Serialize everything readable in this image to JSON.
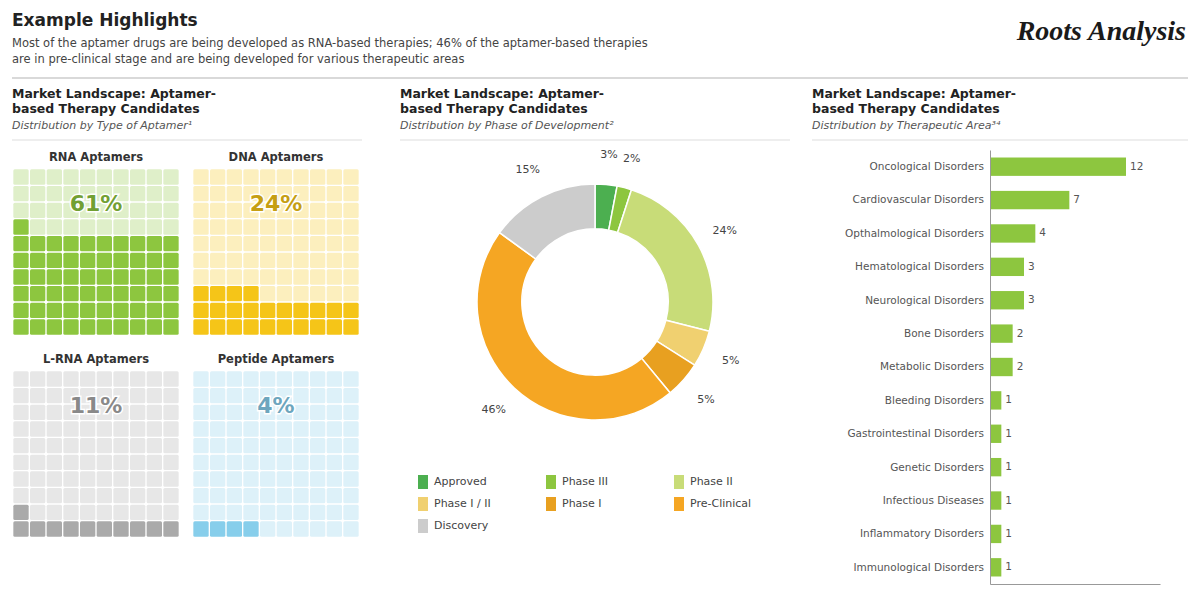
{
  "title": "Example Highlights",
  "subtitle": [
    "Most of the aptamer drugs are being developed as RNA-based therapies; 46% of the aptamer-based therapies",
    "are in pre-clinical stage and are being developed for various therapeutic areas"
  ],
  "annotations": [
    "Roots Analysis"
  ],
  "chart_data": [
    {
      "type": "waffle",
      "title": "Market Landscape: Aptamer-\nbased Therapy Candidates",
      "subtitle": "Distribution by Type of Aptamer¹",
      "categories": [
        "RNA Aptamers",
        "DNA Aptamers",
        "L-RNA Aptamers",
        "Peptide Aptamers"
      ],
      "values": [
        61,
        24,
        11,
        4
      ],
      "value_labels": [
        "61%",
        "24%",
        "11%",
        "4%"
      ],
      "data_labels": true,
      "colors": [
        "#8dc63f",
        "#f5c518",
        "#aaaaaa",
        "#87ceeb"
      ]
    },
    {
      "type": "pie",
      "title": "Market Landscape: Aptamer-\nbased Therapy Candidates",
      "subtitle": "Distribution by Phase of Development²",
      "categories": [
        "Approved",
        "Phase III",
        "Phase II",
        "Phase I / II",
        "Phase I",
        "Pre-Clinical",
        "Discovery"
      ],
      "values": [
        3,
        2,
        24,
        5,
        5,
        46,
        15
      ],
      "value_labels": [
        "3%",
        "2%",
        "24%",
        "5%",
        "5%",
        "46%",
        "15%"
      ],
      "data_labels": true,
      "colors": [
        "#4caf50",
        "#8dc63f",
        "#c8dc78",
        "#f0d070",
        "#e8a020",
        "#f5a623",
        "#cccccc"
      ],
      "legend": "bottom"
    },
    {
      "type": "bar",
      "orientation": "horizontal",
      "title": "Market Landscape: Aptamer-\nbased Therapy Candidates",
      "subtitle": "Distribution by Therapeutic Area³⁴",
      "categories": [
        "Oncological Disorders",
        "Cardiovascular Disorders",
        "Opthalmological Disorders",
        "Hematological Disorders",
        "Neurological Disorders",
        "Bone Disorders",
        "Metabolic Disorders",
        "Bleeding Disorders",
        "Gastrointestinal Disorders",
        "Genetic Disorders",
        "Infectious Diseases",
        "Inflammatory Disorders",
        "Immunological Disorders"
      ],
      "values": [
        12,
        7,
        4,
        3,
        3,
        2,
        2,
        1,
        1,
        1,
        1,
        1,
        1
      ],
      "color": "#8dc63f",
      "xlim": [
        0,
        15
      ],
      "xticks": [],
      "tick_labels": "y",
      "data_labels": true,
      "grid": false
    }
  ]
}
